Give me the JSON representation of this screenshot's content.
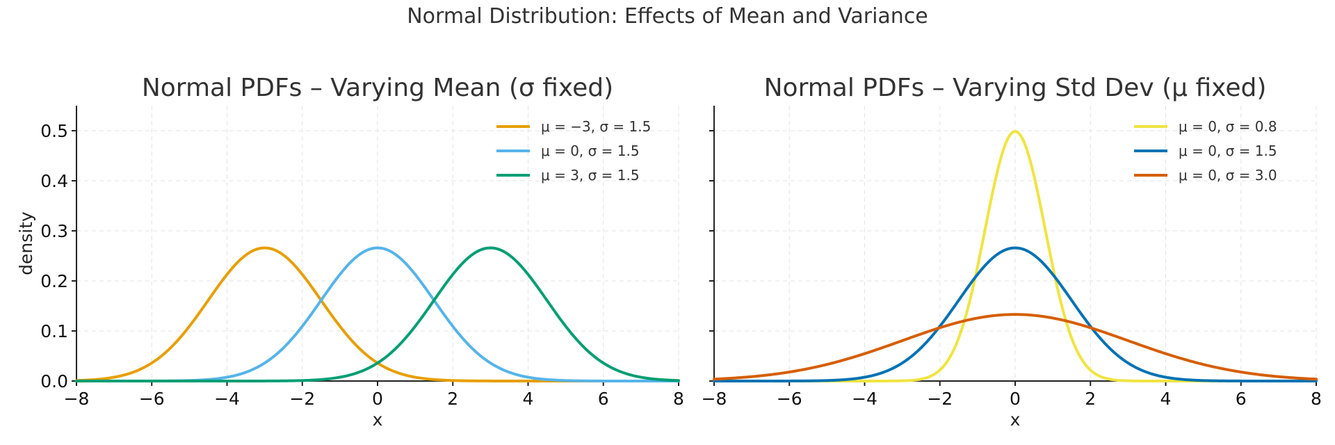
{
  "figure": {
    "suptitle": "Normal Distribution: Effects of Mean and Variance"
  },
  "chart_data": [
    {
      "type": "line",
      "title": "Normal PDFs – Varying Mean (σ fixed)",
      "xlabel": "x",
      "ylabel": "density",
      "xlim": [
        -8,
        8
      ],
      "ylim": [
        0,
        0.55
      ],
      "xticks": [
        -8,
        -6,
        -4,
        -2,
        0,
        2,
        4,
        6,
        8
      ],
      "xtick_labels": [
        "−8",
        "−6",
        "−4",
        "−2",
        "0",
        "2",
        "4",
        "6",
        "8"
      ],
      "yticks": [
        0.0,
        0.1,
        0.2,
        0.3,
        0.4,
        0.5
      ],
      "ytick_labels": [
        "0.0",
        "0.1",
        "0.2",
        "0.3",
        "0.4",
        "0.5"
      ],
      "grid": true,
      "legend_position": "top-right",
      "series": [
        {
          "name": "μ = −3,  σ = 1.5",
          "mu": -3,
          "sigma": 1.5,
          "peak_density": 0.266,
          "color": "#E69F00"
        },
        {
          "name": "μ = 0,  σ = 1.5",
          "mu": 0,
          "sigma": 1.5,
          "peak_density": 0.266,
          "color": "#56B4E9"
        },
        {
          "name": "μ = 3,  σ = 1.5",
          "mu": 3,
          "sigma": 1.5,
          "peak_density": 0.266,
          "color": "#009E73"
        }
      ]
    },
    {
      "type": "line",
      "title": "Normal PDFs – Varying Std Dev (μ fixed)",
      "xlabel": "x",
      "ylabel": "",
      "xlim": [
        -8,
        8
      ],
      "ylim": [
        0,
        0.55
      ],
      "xticks": [
        -8,
        -6,
        -4,
        -2,
        0,
        2,
        4,
        6,
        8
      ],
      "xtick_labels": [
        "−8",
        "−6",
        "−4",
        "−2",
        "0",
        "2",
        "4",
        "6",
        "8"
      ],
      "yticks": [
        0.0,
        0.1,
        0.2,
        0.3,
        0.4,
        0.5
      ],
      "ytick_labels": [],
      "grid": true,
      "legend_position": "top-right",
      "series": [
        {
          "name": "μ = 0,  σ = 0.8",
          "mu": 0,
          "sigma": 0.8,
          "peak_density": 0.499,
          "color": "#F0E442"
        },
        {
          "name": "μ = 0,  σ = 1.5",
          "mu": 0,
          "sigma": 1.5,
          "peak_density": 0.266,
          "color": "#0072B2"
        },
        {
          "name": "μ = 0,  σ = 3.0",
          "mu": 0,
          "sigma": 3.0,
          "peak_density": 0.133,
          "color": "#D55E00"
        }
      ]
    }
  ]
}
